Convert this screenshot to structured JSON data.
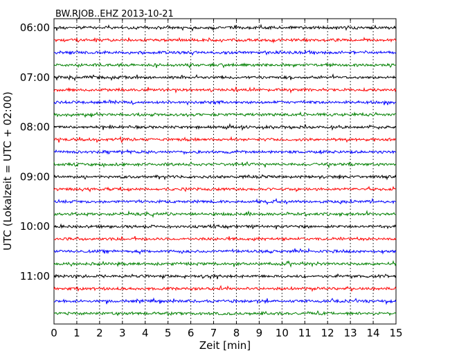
{
  "chart_data": {
    "type": "line",
    "title": "BW.RJOB..EHZ 2013-10-21",
    "xlabel": "Zeit  [min]",
    "ylabel": "UTC (Lokalzeit = UTC + 02:00)",
    "xlim": [
      0,
      15
    ],
    "x_ticks": [
      "0",
      "1",
      "2",
      "3",
      "4",
      "5",
      "6",
      "7",
      "8",
      "9",
      "10",
      "11",
      "12",
      "13",
      "14",
      "15"
    ],
    "y_tick_labels": [
      "06:00",
      "07:00",
      "08:00",
      "09:00",
      "10:00",
      "11:00"
    ],
    "traces_per_hour": 4,
    "trace_count": 24,
    "trace_colors": [
      "#000000",
      "#ff0000",
      "#0000ff",
      "#008000"
    ],
    "grid": "vertical dotted at each minute"
  }
}
